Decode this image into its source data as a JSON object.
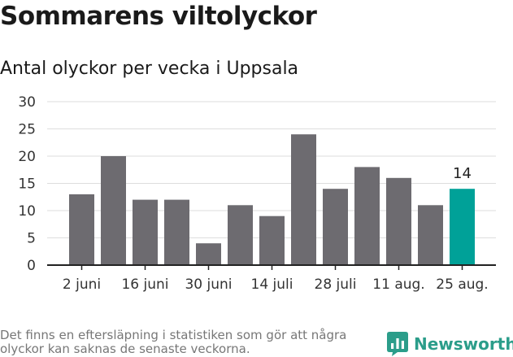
{
  "title": "Sommarens viltolyckor",
  "subtitle": "Antal olyckor per vecka i Uppsala",
  "footer_note": "Det finns en eftersläpning i statistiken som gör att några olyckor kan saknas de senaste veckorna.",
  "brand": {
    "name": "Newsworthy",
    "icon": "newsworthy-logo-icon"
  },
  "colors": {
    "bar": "#6d6b70",
    "highlight": "#00a198",
    "grid": "#dddddd",
    "axis": "#222222",
    "text": "#333333"
  },
  "chart_data": {
    "type": "bar",
    "title": "",
    "xlabel": "",
    "ylabel": "",
    "values": [
      13,
      20,
      12,
      12,
      4,
      11,
      9,
      24,
      14,
      18,
      16,
      11,
      14
    ],
    "tick_labels": [
      {
        "index": 0,
        "label": "2 juni"
      },
      {
        "index": 2,
        "label": "16 juni"
      },
      {
        "index": 4,
        "label": "30 juni"
      },
      {
        "index": 6,
        "label": "14 juli"
      },
      {
        "index": 8,
        "label": "28 juli"
      },
      {
        "index": 10,
        "label": "11 aug."
      },
      {
        "index": 12,
        "label": "25 aug."
      }
    ],
    "y_ticks": [
      0,
      5,
      10,
      15,
      20,
      25,
      30
    ],
    "ylim": [
      0,
      30
    ],
    "highlight_index": 12,
    "annotations": [
      {
        "index": 12,
        "text": "14"
      }
    ],
    "grid": true,
    "legend": "none"
  }
}
